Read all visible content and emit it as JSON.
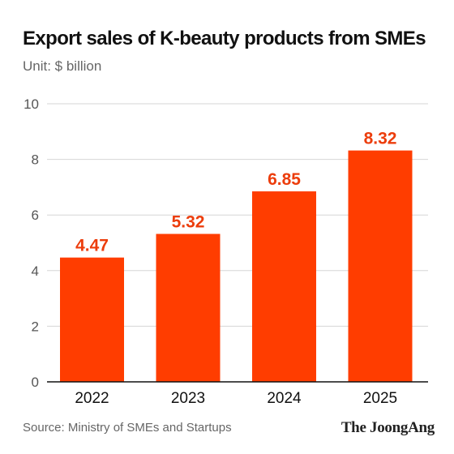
{
  "chart_data": {
    "type": "bar",
    "title": "Export sales of K-beauty products from SMEs",
    "subtitle": "Unit: $ billion",
    "categories": [
      "2022",
      "2023",
      "2024",
      "2025"
    ],
    "values": [
      4.47,
      5.32,
      6.85,
      8.32
    ],
    "value_labels": [
      "4.47",
      "5.32",
      "6.85",
      "8.32"
    ],
    "ylim": [
      0,
      10
    ],
    "yticks": [
      0,
      2,
      4,
      6,
      8,
      10
    ],
    "grid": true,
    "bar_color": "#ff3d00",
    "label_color": "#ec3d0c"
  },
  "footer": {
    "source": "Source: Ministry of SMEs and Startups",
    "publisher": "The JoongAng"
  }
}
